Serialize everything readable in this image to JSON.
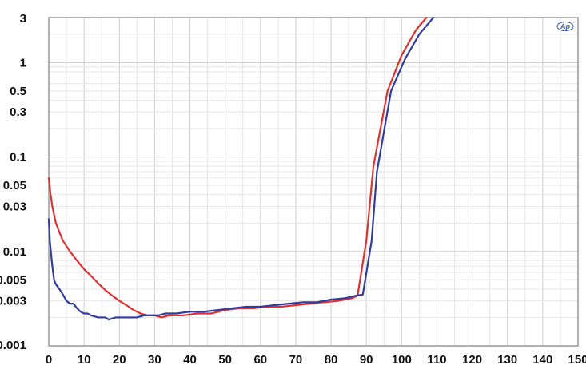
{
  "chart_data": {
    "type": "line",
    "title": "",
    "xlabel": "",
    "ylabel": "",
    "xlim": [
      0,
      150
    ],
    "ylim": [
      0.001,
      3
    ],
    "y_scale": "log",
    "grid": true,
    "legend": "none",
    "logo_text": "Ap",
    "x_ticks": [
      0,
      10,
      20,
      30,
      40,
      50,
      60,
      70,
      80,
      90,
      100,
      110,
      120,
      130,
      140,
      150
    ],
    "x_tick_labels": [
      "0",
      "10",
      "20",
      "30",
      "40",
      "50",
      "60",
      "70",
      "80",
      "90",
      "100",
      "110",
      "120",
      "130",
      "140",
      "150"
    ],
    "y_ticks": [
      3,
      1,
      0.5,
      0.3,
      0.1,
      0.05,
      0.03,
      0.01,
      0.005,
      0.003,
      0.001
    ],
    "y_tick_labels": [
      "3",
      "1",
      "0.5",
      "0.3",
      "0.1",
      "0.05",
      "0.03",
      "0.01",
      "0.005",
      "0.003",
      "0.001"
    ],
    "series": [
      {
        "color": "#e03030",
        "points": [
          [
            0,
            0.06
          ],
          [
            0.5,
            0.04
          ],
          [
            1,
            0.03
          ],
          [
            2,
            0.02
          ],
          [
            3,
            0.016
          ],
          [
            4,
            0.013
          ],
          [
            6,
            0.01
          ],
          [
            8,
            0.008
          ],
          [
            10,
            0.0065
          ],
          [
            12,
            0.0055
          ],
          [
            14,
            0.0046
          ],
          [
            16,
            0.0039
          ],
          [
            18,
            0.0034
          ],
          [
            20,
            0.003
          ],
          [
            22,
            0.0027
          ],
          [
            24,
            0.0024
          ],
          [
            26,
            0.0022
          ],
          [
            28,
            0.0021
          ],
          [
            30,
            0.0021
          ],
          [
            32,
            0.002
          ],
          [
            34,
            0.0021
          ],
          [
            38,
            0.0021
          ],
          [
            42,
            0.0022
          ],
          [
            46,
            0.0022
          ],
          [
            50,
            0.0024
          ],
          [
            54,
            0.0025
          ],
          [
            58,
            0.0025
          ],
          [
            62,
            0.0026
          ],
          [
            66,
            0.0026
          ],
          [
            70,
            0.0027
          ],
          [
            74,
            0.0028
          ],
          [
            78,
            0.0029
          ],
          [
            82,
            0.003
          ],
          [
            86,
            0.0032
          ],
          [
            87.5,
            0.0034
          ],
          [
            90,
            0.013
          ],
          [
            92,
            0.08
          ],
          [
            96,
            0.5
          ],
          [
            100,
            1.2
          ],
          [
            104,
            2.2
          ],
          [
            107,
            3.0
          ]
        ]
      },
      {
        "color": "#2f3da0",
        "points": [
          [
            0,
            0.022
          ],
          [
            0.3,
            0.013
          ],
          [
            0.7,
            0.009
          ],
          [
            1,
            0.007
          ],
          [
            1.5,
            0.005
          ],
          [
            2,
            0.0045
          ],
          [
            3,
            0.004
          ],
          [
            4,
            0.0035
          ],
          [
            5,
            0.003
          ],
          [
            6,
            0.0028
          ],
          [
            7,
            0.0028
          ],
          [
            8,
            0.0025
          ],
          [
            9,
            0.0023
          ],
          [
            10,
            0.0022
          ],
          [
            11,
            0.0022
          ],
          [
            12,
            0.0021
          ],
          [
            14,
            0.002
          ],
          [
            16,
            0.002
          ],
          [
            17,
            0.0019
          ],
          [
            19,
            0.002
          ],
          [
            21,
            0.002
          ],
          [
            23,
            0.002
          ],
          [
            25,
            0.002
          ],
          [
            27,
            0.0021
          ],
          [
            29,
            0.0021
          ],
          [
            31,
            0.0021
          ],
          [
            33,
            0.0022
          ],
          [
            36,
            0.0022
          ],
          [
            40,
            0.0023
          ],
          [
            44,
            0.0023
          ],
          [
            48,
            0.0024
          ],
          [
            52,
            0.0025
          ],
          [
            56,
            0.0026
          ],
          [
            60,
            0.0026
          ],
          [
            64,
            0.0027
          ],
          [
            68,
            0.0028
          ],
          [
            72,
            0.0029
          ],
          [
            76,
            0.0029
          ],
          [
            80,
            0.0031
          ],
          [
            84,
            0.0032
          ],
          [
            87,
            0.0034
          ],
          [
            89,
            0.0035
          ],
          [
            91.5,
            0.013
          ],
          [
            93,
            0.07
          ],
          [
            97,
            0.5
          ],
          [
            101,
            1.1
          ],
          [
            105,
            2.0
          ],
          [
            109,
            3.0
          ]
        ]
      }
    ]
  }
}
